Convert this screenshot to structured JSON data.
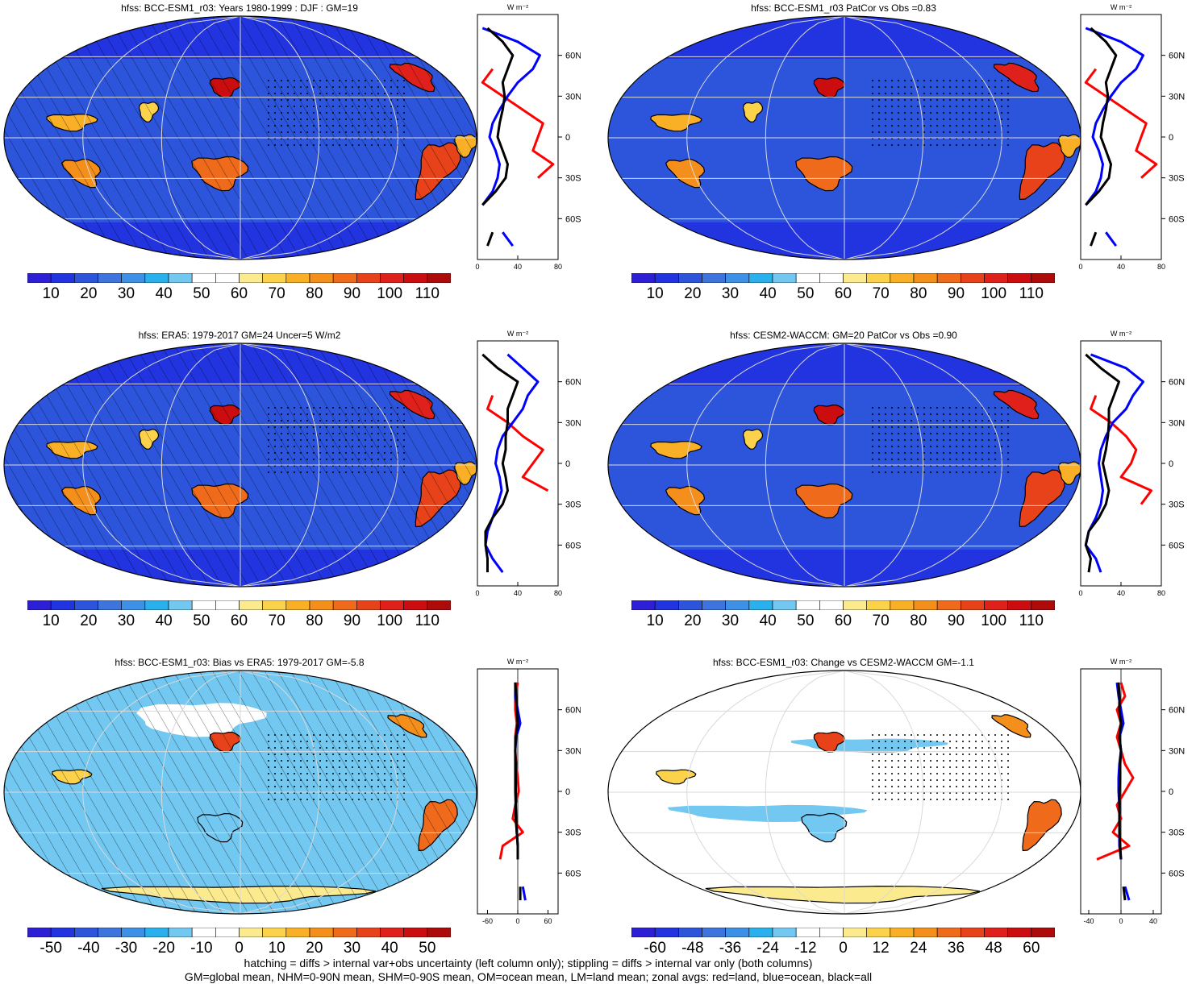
{
  "panels": [
    {
      "title": "hfss: BCC-ESM1_r03: Years 1980-1999 : DJF : GM=19",
      "kind": "abs",
      "hatch": true
    },
    {
      "title": "hfss: BCC-ESM1_r03 PatCor vs Obs =0.83",
      "kind": "abs",
      "hatch": false
    },
    {
      "title": "hfss: ERA5: 1979-2017 GM=24 Uncer=5 W/m2",
      "kind": "abs",
      "hatch": true
    },
    {
      "title": "hfss: CESM2-WACCM: GM=20 PatCor vs Obs =0.90",
      "kind": "abs",
      "hatch": false
    },
    {
      "title": "hfss: BCC-ESM1_r03: Bias vs ERA5: 1979-2017 GM=-5.8",
      "kind": "diff",
      "hatch": true
    },
    {
      "title": "hfss: BCC-ESM1_r03: Change vs CESM2-WACCM GM=-1.1",
      "kind": "diff",
      "hatch": false
    }
  ],
  "colorbars": {
    "abs": {
      "labels": [
        "10",
        "20",
        "30",
        "40",
        "50",
        "60",
        "70",
        "80",
        "90",
        "100",
        "110"
      ],
      "colors": [
        "#2d1fd6",
        "#2233e0",
        "#2d55dc",
        "#3e74dd",
        "#3d90e6",
        "#2bb0ee",
        "#72c8f0",
        "#ffffff",
        "#ffffff",
        "#fbeb8e",
        "#fcd24b",
        "#f9b027",
        "#f58f1c",
        "#ef6a1a",
        "#e7421a",
        "#e0201a",
        "#cc0d10",
        "#ad0a0a"
      ]
    },
    "bias": {
      "labels": [
        "-50",
        "-40",
        "-30",
        "-20",
        "-10",
        "0",
        "10",
        "20",
        "30",
        "40",
        "50"
      ],
      "colors": [
        "#2d1fd6",
        "#2233e0",
        "#2d55dc",
        "#3e74dd",
        "#3d90e6",
        "#2bb0ee",
        "#72c8f0",
        "#ffffff",
        "#ffffff",
        "#fbeb8e",
        "#fcd24b",
        "#f9b027",
        "#f58f1c",
        "#ef6a1a",
        "#e7421a",
        "#e0201a",
        "#cc0d10",
        "#ad0a0a"
      ]
    },
    "change": {
      "labels": [
        "-60",
        "-48",
        "-36",
        "-24",
        "-12",
        "0",
        "12",
        "24",
        "36",
        "48",
        "60"
      ],
      "colors": [
        "#2d1fd6",
        "#2233e0",
        "#2d55dc",
        "#3e74dd",
        "#3d90e6",
        "#2bb0ee",
        "#72c8f0",
        "#ffffff",
        "#ffffff",
        "#fbeb8e",
        "#fcd24b",
        "#f9b027",
        "#f58f1c",
        "#ef6a1a",
        "#e7421a",
        "#e0201a",
        "#cc0d10",
        "#ad0a0a"
      ]
    }
  },
  "zonal_axes": {
    "unit": "W m⁻²",
    "lat_ticks": [
      "60N",
      "30N",
      "0",
      "30S",
      "60S"
    ],
    "lat_values": [
      60,
      30,
      0,
      -30,
      -60
    ],
    "x_ticks_abs": [
      "0",
      "40",
      "80"
    ],
    "x_ticks_bias": [
      "-60",
      "0",
      "60"
    ],
    "x_ticks_change": [
      "-40",
      "0",
      "40"
    ]
  },
  "footer": {
    "line1": "hatching = diffs > internal var+obs uncertainty (left column only); stippling = diffs > internal var only (both columns)",
    "line2": "GM=global mean, NHM=0-90N mean, SHM=0-90S mean, OM=ocean mean, LM=land mean; zonal avgs: red=land, blue=ocean, black=all"
  },
  "chart_data": [
    {
      "type": "heatmap",
      "title": "hfss: BCC-ESM1_r03: Years 1980-1999 : DJF : GM=19",
      "colorbar_range": [
        10,
        110
      ],
      "zonal_mean": {
        "lat": [
          80,
          70,
          60,
          50,
          40,
          30,
          20,
          10,
          0,
          -10,
          -20,
          -30,
          -40,
          -50,
          -60,
          -70,
          -80
        ],
        "land": [
          null,
          null,
          null,
          15,
          5,
          25,
          45,
          65,
          60,
          55,
          75,
          60,
          null,
          null,
          null,
          10,
          null
        ],
        "ocean": [
          5,
          40,
          62,
          55,
          40,
          30,
          22,
          15,
          12,
          18,
          22,
          20,
          15,
          5,
          null,
          25,
          35
        ],
        "all": [
          10,
          25,
          35,
          30,
          25,
          27,
          25,
          22,
          20,
          25,
          30,
          28,
          18,
          5,
          null,
          15,
          10
        ]
      }
    },
    {
      "type": "heatmap",
      "title": "hfss: BCC-ESM1_r03 PatCor vs Obs =0.83",
      "colorbar_range": [
        10,
        110
      ],
      "zonal_mean": {
        "lat": [
          80,
          70,
          60,
          50,
          40,
          30,
          20,
          10,
          0,
          -10,
          -20,
          -30,
          -40,
          -50,
          -60,
          -70,
          -80
        ],
        "land": [
          null,
          null,
          null,
          15,
          5,
          25,
          45,
          65,
          60,
          55,
          75,
          60,
          null,
          null,
          null,
          10,
          null
        ],
        "ocean": [
          5,
          40,
          62,
          55,
          40,
          30,
          22,
          15,
          12,
          18,
          22,
          20,
          15,
          5,
          null,
          25,
          35
        ],
        "all": [
          10,
          25,
          35,
          30,
          25,
          27,
          25,
          22,
          20,
          25,
          30,
          28,
          18,
          5,
          null,
          15,
          10
        ]
      }
    },
    {
      "type": "heatmap",
      "title": "hfss: ERA5: 1979-2017 GM=24 Uncer=5 W/m2",
      "colorbar_range": [
        10,
        110
      ],
      "zonal_mean": {
        "lat": [
          80,
          70,
          60,
          50,
          40,
          30,
          20,
          10,
          0,
          -10,
          -20,
          -30,
          -40,
          -50,
          -60,
          -70,
          -80
        ],
        "land": [
          0,
          null,
          null,
          15,
          10,
          30,
          45,
          65,
          55,
          45,
          70,
          null,
          null,
          null,
          null,
          5,
          null
        ],
        "ocean": [
          30,
          45,
          60,
          50,
          45,
          35,
          25,
          20,
          18,
          22,
          24,
          20,
          15,
          10,
          8,
          15,
          25
        ],
        "all": [
          5,
          20,
          40,
          35,
          30,
          30,
          28,
          28,
          25,
          28,
          30,
          25,
          15,
          8,
          8,
          10,
          10
        ]
      }
    },
    {
      "type": "heatmap",
      "title": "hfss: CESM2-WACCM: GM=20 PatCor vs Obs =0.90",
      "colorbar_range": [
        10,
        110
      ],
      "zonal_mean": {
        "lat": [
          80,
          70,
          60,
          50,
          40,
          30,
          20,
          10,
          0,
          -10,
          -20,
          -30,
          -40,
          -50,
          -60,
          -70,
          -80
        ],
        "land": [
          null,
          null,
          null,
          15,
          10,
          30,
          45,
          55,
          50,
          40,
          70,
          60,
          null,
          null,
          null,
          10,
          null
        ],
        "ocean": [
          10,
          45,
          62,
          52,
          45,
          32,
          25,
          20,
          18,
          20,
          22,
          20,
          15,
          8,
          5,
          15,
          20
        ],
        "all": [
          5,
          20,
          38,
          33,
          28,
          28,
          27,
          25,
          22,
          25,
          28,
          25,
          18,
          8,
          5,
          10,
          8
        ]
      }
    },
    {
      "type": "heatmap",
      "title": "hfss: BCC-ESM1_r03: Bias vs ERA5: 1979-2017 GM=-5.8",
      "colorbar_range": [
        -50,
        50
      ],
      "zonal_mean": {
        "lat": [
          80,
          70,
          60,
          50,
          40,
          30,
          20,
          10,
          0,
          -10,
          -20,
          -30,
          -40,
          -50,
          -60,
          -70,
          -80
        ],
        "land": [
          0,
          -5,
          -5,
          -2,
          -5,
          -5,
          -3,
          0,
          2,
          -5,
          -10,
          10,
          -30,
          -35,
          null,
          5,
          null
        ],
        "ocean": [
          -5,
          -5,
          0,
          5,
          -3,
          -5,
          -5,
          -5,
          -5,
          -4,
          -3,
          -2,
          0,
          0,
          null,
          10,
          15
        ],
        "all": [
          -5,
          -3,
          -2,
          0,
          -4,
          -5,
          -4,
          -4,
          -4,
          -4,
          -4,
          -2,
          0,
          0,
          null,
          5,
          5
        ]
      }
    },
    {
      "type": "heatmap",
      "title": "hfss: BCC-ESM1_r03: Change vs CESM2-WACCM GM=-1.1",
      "colorbar_range": [
        -60,
        60
      ],
      "zonal_mean": {
        "lat": [
          80,
          70,
          60,
          50,
          40,
          30,
          20,
          10,
          0,
          -10,
          -20,
          -30,
          -40,
          -50,
          -60,
          -70,
          -80
        ],
        "land": [
          0,
          5,
          -5,
          0,
          -5,
          0,
          5,
          15,
          5,
          -5,
          0,
          -10,
          10,
          -30,
          null,
          10,
          null
        ],
        "ocean": [
          -5,
          -3,
          0,
          3,
          -2,
          0,
          -2,
          -3,
          -3,
          -2,
          -2,
          -2,
          -2,
          0,
          null,
          5,
          10
        ],
        "all": [
          -3,
          -2,
          -2,
          0,
          -2,
          0,
          -1,
          -1,
          -2,
          -2,
          -2,
          -2,
          -1,
          0,
          null,
          3,
          5
        ]
      }
    }
  ]
}
